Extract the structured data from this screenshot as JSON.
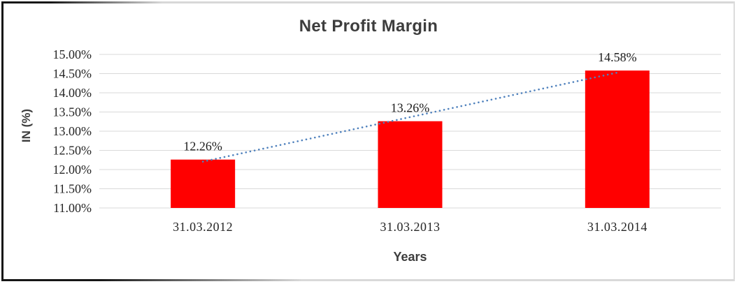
{
  "chart": {
    "title": "Net Profit Margin",
    "x_axis_title": "Years",
    "y_axis_title": "IN (%)"
  },
  "chart_data": {
    "type": "bar",
    "title": "Net Profit Margin",
    "xlabel": "Years",
    "ylabel": "IN (%)",
    "categories": [
      "31.03.2012",
      "31.03.2013",
      "31.03.2014"
    ],
    "values": [
      12.26,
      13.26,
      14.58
    ],
    "value_labels": [
      "12.26%",
      "13.26%",
      "14.58%"
    ],
    "ylim": [
      11.0,
      15.0
    ],
    "ytick_step": 0.5,
    "yticks": [
      "11.00%",
      "11.50%",
      "12.00%",
      "12.50%",
      "13.00%",
      "13.50%",
      "14.00%",
      "14.50%",
      "15.00%"
    ],
    "grid": true,
    "legend": "none",
    "bar_color": "#FF0000",
    "gridline_color": "#D9D9D9",
    "tick_color": "#262626",
    "title_color": "#3D3D3D",
    "trendline": {
      "type": "linear",
      "style": "dotted",
      "color": "#4F81BD"
    }
  }
}
